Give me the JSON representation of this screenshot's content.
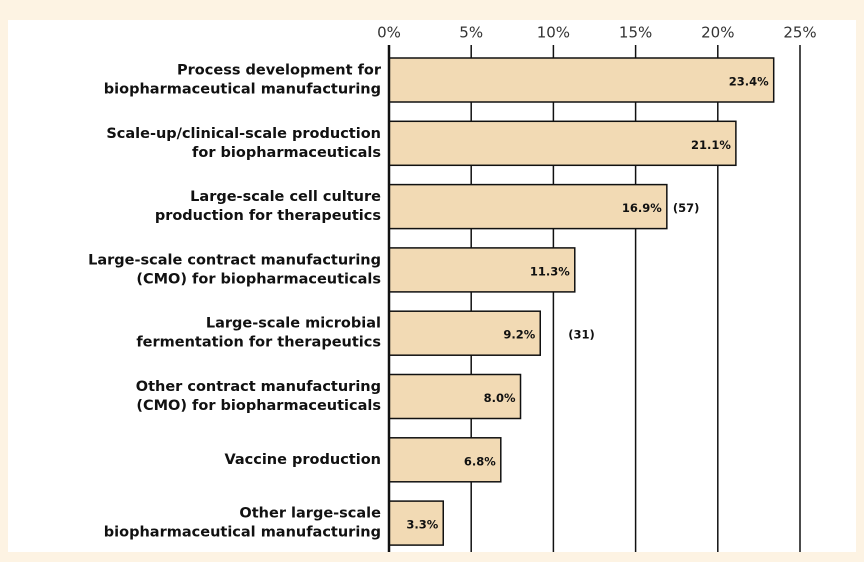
{
  "chart_data": {
    "type": "barh",
    "categories": [
      [
        "Process development for",
        "biopharmaceutical manufacturing"
      ],
      [
        "Scale-up/clinical-scale production",
        "for biopharmaceuticals"
      ],
      [
        "Large-scale cell culture",
        "production for therapeutics"
      ],
      [
        "Large-scale contract manufacturing",
        "(CMO) for biopharmaceuticals"
      ],
      [
        "Large-scale microbial",
        "fermentation for therapeutics"
      ],
      [
        "Other contract manufacturing",
        "(CMO) for biopharmaceuticals"
      ],
      [
        "Vaccine production"
      ],
      [
        "Other large-scale",
        "biopharmaceutical manufacturing"
      ]
    ],
    "values": [
      23.4,
      21.1,
      16.9,
      11.3,
      9.2,
      8.0,
      6.8,
      3.3
    ],
    "value_labels": [
      "23.4%",
      "21.1%",
      "16.9%",
      "11.3%",
      "9.2%",
      "8.0%",
      "6.8%",
      "3.3%"
    ],
    "annotations": [
      "(57)",
      "(31)"
    ],
    "color": "#f2dab4",
    "xlim": [
      0,
      25
    ],
    "xticks": [
      {
        "value": 0,
        "label": "0%"
      },
      {
        "value": 5,
        "label": "5%"
      },
      {
        "value": 10,
        "label": "10%"
      },
      {
        "value": 15,
        "label": "15%"
      },
      {
        "value": 20,
        "label": "20%"
      },
      {
        "value": 25,
        "label": "25%"
      }
    ],
    "grid": true
  }
}
